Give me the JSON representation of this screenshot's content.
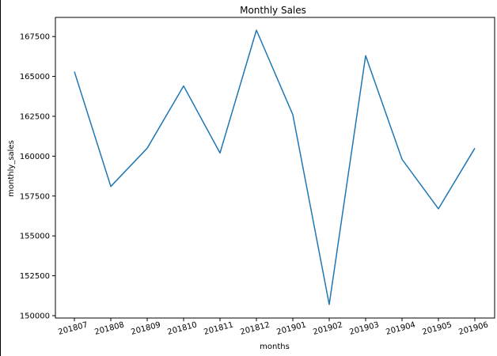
{
  "chart_data": {
    "type": "line",
    "title": "Monthly Sales",
    "xlabel": "months",
    "ylabel": "monthly_sales",
    "categories": [
      "201807",
      "201808",
      "201809",
      "201810",
      "201811",
      "201812",
      "201901",
      "201902",
      "201903",
      "201904",
      "201905",
      "201906"
    ],
    "series": [
      {
        "values": [
          165300,
          158100,
          160500,
          164400,
          160200,
          167900,
          162600,
          150700,
          166300,
          159800,
          156700,
          160500
        ],
        "color": "#1f77b4"
      }
    ],
    "ylim": [
      149850,
      168700
    ],
    "yticks": [
      150000,
      152500,
      155000,
      157500,
      160000,
      162500,
      165000,
      167500
    ],
    "grid": false,
    "legend": "none"
  }
}
